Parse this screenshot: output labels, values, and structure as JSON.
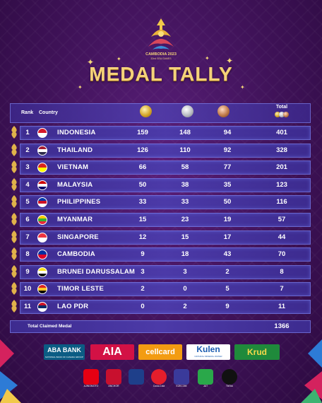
{
  "header": {
    "logo_text": "CAMBODIA 2023",
    "logo_sub": "32nd SEA GAMES",
    "title": "MEDAL TALLY"
  },
  "table": {
    "col_rank": "Rank",
    "col_country": "Country",
    "col_total": "Total",
    "rows": [
      {
        "rank": "1",
        "country": "INDONESIA",
        "gold": "159",
        "silver": "148",
        "bronze": "94",
        "total": "401",
        "flag": [
          "#d7182a",
          "#ffffff"
        ]
      },
      {
        "rank": "2",
        "country": "THAILAND",
        "gold": "126",
        "silver": "110",
        "bronze": "92",
        "total": "328",
        "flag": [
          "#a51931",
          "#ffffff",
          "#2d2a4a"
        ]
      },
      {
        "rank": "3",
        "country": "VIETNAM",
        "gold": "66",
        "silver": "58",
        "bronze": "77",
        "total": "201",
        "flag": [
          "#da251d",
          "#ffff00"
        ]
      },
      {
        "rank": "4",
        "country": "MALAYSIA",
        "gold": "50",
        "silver": "38",
        "bronze": "35",
        "total": "123",
        "flag": [
          "#cc0001",
          "#ffffff",
          "#010066"
        ]
      },
      {
        "rank": "5",
        "country": "PHILIPPINES",
        "gold": "33",
        "silver": "33",
        "bronze": "50",
        "total": "116",
        "flag": [
          "#0038a8",
          "#ce1126",
          "#ffffff"
        ]
      },
      {
        "rank": "6",
        "country": "MYANMAR",
        "gold": "15",
        "silver": "23",
        "bronze": "19",
        "total": "57",
        "flag": [
          "#fecb00",
          "#34b233",
          "#ea2839"
        ]
      },
      {
        "rank": "7",
        "country": "SINGAPORE",
        "gold": "12",
        "silver": "15",
        "bronze": "17",
        "total": "44",
        "flag": [
          "#ef3340",
          "#ffffff"
        ]
      },
      {
        "rank": "8",
        "country": "CAMBODIA",
        "gold": "9",
        "silver": "18",
        "bronze": "43",
        "total": "70",
        "flag": [
          "#032ea1",
          "#e00025"
        ]
      },
      {
        "rank": "9",
        "country": "BRUNEI DARUSSALAM",
        "gold": "3",
        "silver": "3",
        "bronze": "2",
        "total": "8",
        "flag": [
          "#f7e017",
          "#ffffff",
          "#000000"
        ]
      },
      {
        "rank": "10",
        "country": "TIMOR LESTE",
        "gold": "2",
        "silver": "0",
        "bronze": "5",
        "total": "7",
        "flag": [
          "#dc241f",
          "#ffc726",
          "#000000"
        ]
      },
      {
        "rank": "11",
        "country": "LAO PDR",
        "gold": "0",
        "silver": "2",
        "bronze": "9",
        "total": "11",
        "flag": [
          "#ce1126",
          "#002868",
          "#ffffff"
        ]
      }
    ],
    "total_label": "Total Claimed Medal",
    "total_value": "1366"
  },
  "sponsors": {
    "row1": [
      {
        "name": "ABA BANK",
        "sub": "NATIONAL BANK OF CANADA GROUP",
        "bg": "#0b5c84",
        "fg": "#ffffff"
      },
      {
        "name": "AIA",
        "sub": "",
        "bg": "#d31145",
        "fg": "#ffffff"
      },
      {
        "name": "cellcard",
        "sub": "",
        "bg": "#f39c12",
        "fg": "#ffffff"
      },
      {
        "name": "Kulen",
        "sub": "NATURAL MINERAL WATER",
        "bg": "#ffffff",
        "fg": "#1a5cb0"
      },
      {
        "name": "Krud",
        "sub": "",
        "bg": "#1f8a3b",
        "fg": "#f7d84a"
      }
    ],
    "row2": [
      {
        "name": "AJINOMOTO",
        "bg": "#e60012"
      },
      {
        "name": "ANCHOR",
        "bg": "#c8102e"
      },
      {
        "name": "",
        "bg": "#1e3f8a"
      },
      {
        "name": "Coca-Cola",
        "bg": "#e41e2b"
      },
      {
        "name": "EZECOM",
        "bg": "#3a3a9a"
      },
      {
        "name": "J&T",
        "bg": "#2aa84a"
      },
      {
        "name": "TikTok",
        "bg": "#111111"
      }
    ]
  },
  "colors": {
    "gold_text": "#f4d27a",
    "row_bg": "#4c3aa8"
  }
}
